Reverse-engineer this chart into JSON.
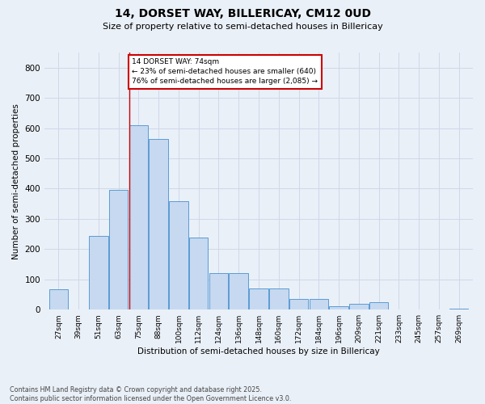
{
  "title1": "14, DORSET WAY, BILLERICAY, CM12 0UD",
  "title2": "Size of property relative to semi-detached houses in Billericay",
  "xlabel": "Distribution of semi-detached houses by size in Billericay",
  "ylabel": "Number of semi-detached properties",
  "bar_labels": [
    "27sqm",
    "39sqm",
    "51sqm",
    "63sqm",
    "75sqm",
    "88sqm",
    "100sqm",
    "112sqm",
    "124sqm",
    "136sqm",
    "148sqm",
    "160sqm",
    "172sqm",
    "184sqm",
    "196sqm",
    "209sqm",
    "221sqm",
    "233sqm",
    "245sqm",
    "257sqm",
    "269sqm"
  ],
  "bar_values": [
    68,
    0,
    243,
    395,
    610,
    565,
    358,
    238,
    122,
    122,
    70,
    70,
    35,
    35,
    10,
    20,
    25,
    0,
    0,
    0,
    3
  ],
  "bar_color": "#c6d9f0",
  "bar_edge_color": "#5b9bd5",
  "annotation_text": "14 DORSET WAY: 74sqm\n← 23% of semi-detached houses are smaller (640)\n76% of semi-detached houses are larger (2,085) →",
  "annotation_box_color": "#ffffff",
  "annotation_border_color": "#cc0000",
  "vline_color": "#cc0000",
  "ylim": [
    0,
    850
  ],
  "yticks": [
    0,
    100,
    200,
    300,
    400,
    500,
    600,
    700,
    800
  ],
  "grid_color": "#d0d8e8",
  "bg_color": "#eaf0f8",
  "footer1": "Contains HM Land Registry data © Crown copyright and database right 2025.",
  "footer2": "Contains public sector information licensed under the Open Government Licence v3.0."
}
